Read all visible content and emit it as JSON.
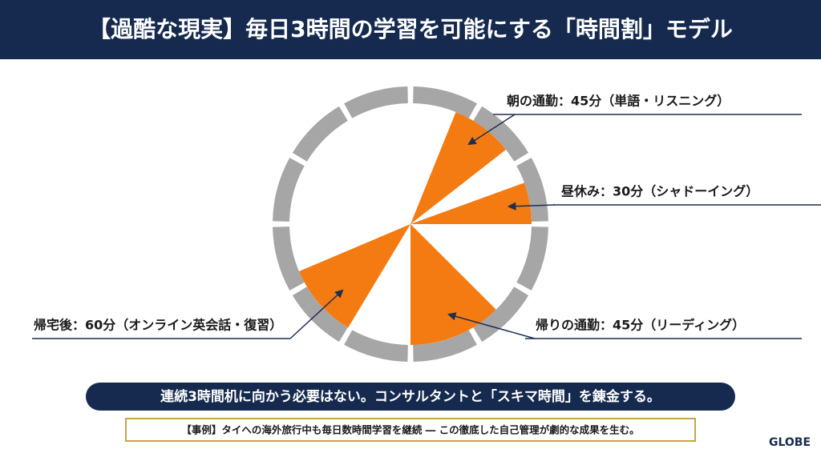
{
  "header": {
    "title": "【過酷な現実】毎日3時間の学習を可能にする「時間割」モデル"
  },
  "diagram": {
    "labels": [
      "朝の通勤：45分（単語・リスニング）",
      "昼休み：30分（シャドーイング）",
      "帰りの通勤：45分（リーディング）",
      "帰宅後：60分（オンライン英会話・復習）"
    ]
  },
  "banner": {
    "text": "連続3時間机に向かう必要はない。コンサルタントと「スキマ時間」を錬金する。"
  },
  "note": {
    "text": "【事例】タイへの海外旅行中も毎日数時間学習を継続 ― この徹底した自己管理が劇的な成果を生む。"
  },
  "logo": {
    "text": "GLOBE"
  }
}
